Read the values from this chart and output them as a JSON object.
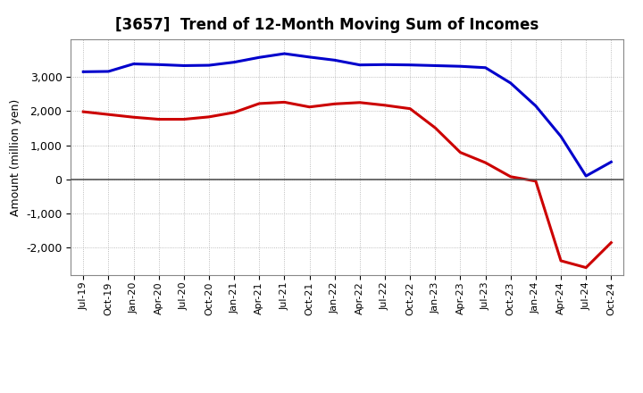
{
  "title": "[3657]  Trend of 12-Month Moving Sum of Incomes",
  "ylabel": "Amount (million yen)",
  "x_labels": [
    "Jul-19",
    "Oct-19",
    "Jan-20",
    "Apr-20",
    "Jul-20",
    "Oct-20",
    "Jan-21",
    "Apr-21",
    "Jul-21",
    "Oct-21",
    "Jan-22",
    "Apr-22",
    "Jul-22",
    "Oct-22",
    "Jan-23",
    "Apr-23",
    "Jul-23",
    "Oct-23",
    "Jan-24",
    "Apr-24",
    "Jul-24",
    "Oct-24"
  ],
  "ordinary_income": [
    3150,
    3160,
    3380,
    3360,
    3330,
    3340,
    3430,
    3570,
    3680,
    3580,
    3490,
    3350,
    3360,
    3350,
    3330,
    3310,
    3270,
    2820,
    2150,
    1260,
    100,
    510
  ],
  "net_income": [
    1980,
    1900,
    1820,
    1760,
    1760,
    1830,
    1960,
    2220,
    2260,
    2120,
    2210,
    2250,
    2170,
    2070,
    1510,
    790,
    490,
    80,
    -50,
    -2380,
    -2580,
    -1850
  ],
  "ordinary_color": "#0000cc",
  "net_color": "#cc0000",
  "bg_color": "#ffffff",
  "plot_bg_color": "#ffffff",
  "grid_color": "#aaaaaa",
  "ylim": [
    -2800,
    4100
  ],
  "yticks": [
    -2000,
    -1000,
    0,
    1000,
    2000,
    3000
  ],
  "line_width": 2.2,
  "title_fontsize": 12,
  "legend_fontsize": 10,
  "axis_fontsize": 9,
  "tick_fontsize": 8
}
